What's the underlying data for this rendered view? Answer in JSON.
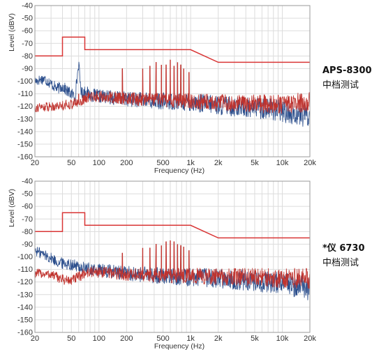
{
  "charts": [
    {
      "id": "top",
      "side_label": {
        "line1": "APS-8300",
        "line2": "中档测试"
      },
      "chart_data": {
        "type": "line",
        "title": "",
        "xlabel": "Frequency (Hz)",
        "ylabel": "Level (dBV)",
        "xscale": "log",
        "xlim": [
          20,
          20000
        ],
        "ylim": [
          -160,
          -40
        ],
        "grid": true,
        "xticks": [
          20,
          50,
          100,
          200,
          500,
          1000,
          2000,
          5000,
          10000,
          20000
        ],
        "xtick_labels": [
          "20",
          "50",
          "100",
          "200",
          "500",
          "1k",
          "2k",
          "5k",
          "10k",
          "20k"
        ],
        "yticks": [
          -40,
          -50,
          -60,
          -70,
          -80,
          -90,
          -100,
          -110,
          -120,
          -130,
          -140,
          -150,
          -160
        ],
        "ytick_labels": [
          "-40",
          "-50",
          "-60",
          "-70",
          "-80",
          "-90",
          "-100",
          "-110",
          "-120",
          "-130",
          "-140",
          "-150",
          "-160"
        ],
        "colors": {
          "limit": "#d93535",
          "blue": "#2b4e8c",
          "red": "#c0332e",
          "grid": "#dcdcdc",
          "axis": "#9a9a9a"
        },
        "series": [
          {
            "key": "limit",
            "x": [
              20,
              40,
              40,
              70,
              70,
              1000,
              2000,
              20000
            ],
            "y": [
              -80,
              -80,
              -65,
              -65,
              -75,
              -75,
              -85,
              -85
            ]
          },
          {
            "key": "blue",
            "x": [
              20,
              25,
              30,
              35,
              40,
              45,
              50,
              55,
              60,
              63,
              65,
              70,
              80,
              100,
              150,
              200,
              300,
              500,
              700,
              1000,
              1500,
              2000,
              3000,
              5000,
              8000,
              10000,
              15000,
              20000
            ],
            "y": [
              -100,
              -98,
              -102,
              -106,
              -104,
              -108,
              -110,
              -112,
              -86,
              -104,
              -110,
              -108,
              -111,
              -112,
              -113,
              -114,
              -115,
              -116,
              -116,
              -117,
              -118,
              -119,
              -120,
              -121,
              -122,
              -124,
              -126,
              -128
            ],
            "noise": 7
          },
          {
            "key": "red",
            "x": [
              20,
              30,
              40,
              50,
              60,
              70,
              80,
              100,
              150,
              200,
              500,
              1000,
              2000,
              5000,
              10000,
              20000
            ],
            "y": [
              -121,
              -120,
              -119,
              -118,
              -117,
              -114,
              -112,
              -112,
              -113,
              -114,
              -115,
              -116,
              -117,
              -118,
              -118,
              -117
            ],
            "noise": 6,
            "peaks": [
              {
                "x": 60,
                "y": -110
              },
              {
                "x": 180,
                "y": -90
              },
              {
                "x": 300,
                "y": -90
              },
              {
                "x": 360,
                "y": -88
              },
              {
                "x": 420,
                "y": -85
              },
              {
                "x": 480,
                "y": -87
              },
              {
                "x": 540,
                "y": -87
              },
              {
                "x": 600,
                "y": -83
              },
              {
                "x": 660,
                "y": -88
              },
              {
                "x": 720,
                "y": -85
              },
              {
                "x": 780,
                "y": -87
              },
              {
                "x": 840,
                "y": -90
              },
              {
                "x": 960,
                "y": -93
              }
            ]
          }
        ]
      }
    },
    {
      "id": "bottom",
      "side_label": {
        "line1": "*仪 6730",
        "line2": "中档测试"
      },
      "chart_data": {
        "type": "line",
        "title": "",
        "xlabel": "Frequency (Hz)",
        "ylabel": "Level (dBV)",
        "xscale": "log",
        "xlim": [
          20,
          20000
        ],
        "ylim": [
          -160,
          -40
        ],
        "grid": true,
        "xticks": [
          20,
          50,
          100,
          200,
          500,
          1000,
          2000,
          5000,
          10000,
          20000
        ],
        "xtick_labels": [
          "20",
          "50",
          "100",
          "200",
          "500",
          "1k",
          "2k",
          "5k",
          "10k",
          "20k"
        ],
        "yticks": [
          -40,
          -50,
          -60,
          -70,
          -80,
          -90,
          -100,
          -110,
          -120,
          -130,
          -140,
          -150,
          -160
        ],
        "ytick_labels": [
          "-40",
          "-50",
          "-60",
          "-70",
          "-80",
          "-90",
          "-100",
          "-110",
          "-120",
          "-130",
          "-140",
          "-150",
          "-160"
        ],
        "colors": {
          "limit": "#d93535",
          "blue": "#2b4e8c",
          "red": "#c0332e",
          "grid": "#dcdcdc",
          "axis": "#9a9a9a"
        },
        "series": [
          {
            "key": "limit",
            "x": [
              20,
              40,
              40,
              70,
              70,
              1000,
              2000,
              20000
            ],
            "y": [
              -80,
              -80,
              -65,
              -65,
              -75,
              -75,
              -85,
              -85
            ]
          },
          {
            "key": "blue",
            "x": [
              20,
              25,
              30,
              35,
              40,
              50,
              60,
              70,
              100,
              150,
              200,
              300,
              500,
              1000,
              2000,
              5000,
              10000,
              15000,
              20000
            ],
            "y": [
              -95,
              -98,
              -101,
              -104,
              -105,
              -106,
              -108,
              -109,
              -111,
              -112,
              -113,
              -114,
              -115,
              -116,
              -117,
              -119,
              -121,
              -123,
              -126
            ],
            "noise": 7
          },
          {
            "key": "red",
            "x": [
              20,
              30,
              40,
              50,
              60,
              70,
              80,
              100,
              150,
              200,
              500,
              1000,
              2000,
              5000,
              10000,
              20000
            ],
            "y": [
              -113,
              -114,
              -118,
              -119,
              -116,
              -113,
              -112,
              -112,
              -113,
              -114,
              -115,
              -115,
              -116,
              -116,
              -117,
              -117
            ],
            "noise": 6,
            "peaks": [
              {
                "x": 180,
                "y": -97
              },
              {
                "x": 300,
                "y": -93
              },
              {
                "x": 360,
                "y": -93
              },
              {
                "x": 420,
                "y": -90
              },
              {
                "x": 480,
                "y": -91
              },
              {
                "x": 540,
                "y": -88
              },
              {
                "x": 600,
                "y": -87
              },
              {
                "x": 660,
                "y": -88
              },
              {
                "x": 720,
                "y": -90
              },
              {
                "x": 780,
                "y": -91
              },
              {
                "x": 840,
                "y": -92
              },
              {
                "x": 960,
                "y": -95
              }
            ]
          }
        ]
      }
    }
  ]
}
